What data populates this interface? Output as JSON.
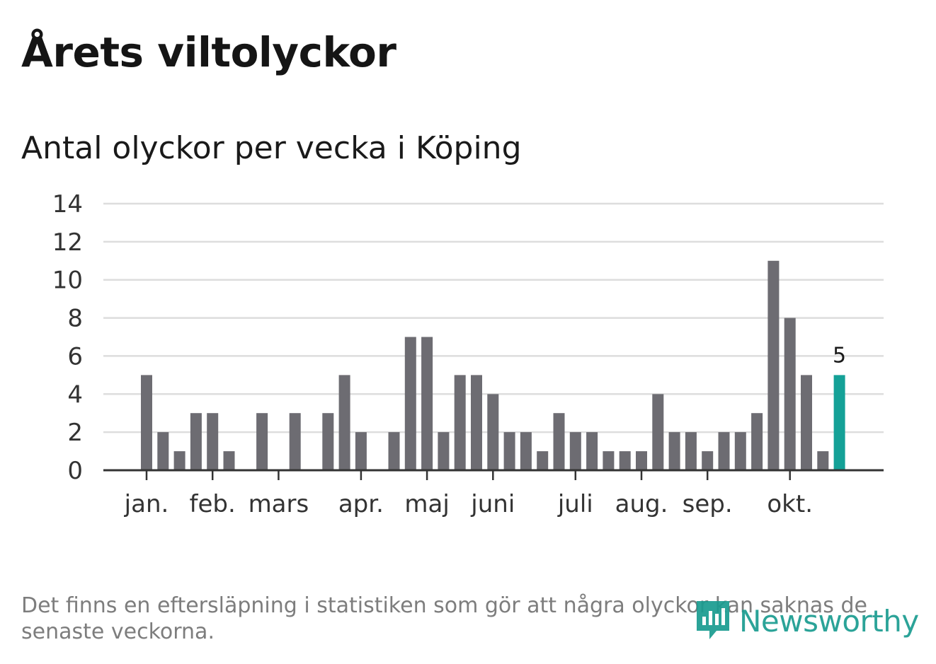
{
  "header": {
    "title": "Årets viltolyckor",
    "subtitle": "Antal olyckor per vecka i Köping"
  },
  "footnote": "Det finns en eftersläpning i statistiken som gör att några olyckor kan saknas de senaste veckorna.",
  "brand": {
    "name": "Newsworthy",
    "icon": "newsworthy-logo-icon",
    "color": "#1a9c90"
  },
  "chart_data": {
    "type": "bar",
    "title": "Antal olyckor per vecka i Köping",
    "xlabel": "",
    "ylabel": "",
    "ylim": [
      0,
      14
    ],
    "yticks": [
      0,
      2,
      4,
      6,
      8,
      10,
      12,
      14
    ],
    "grid": true,
    "weeks": [
      1,
      2,
      3,
      4,
      5,
      6,
      7,
      8,
      9,
      10,
      11,
      12,
      13,
      14,
      15,
      16,
      17,
      18,
      19,
      20,
      21,
      22,
      23,
      24,
      25,
      26,
      27,
      28,
      29,
      30,
      31,
      32,
      33,
      34,
      35,
      36,
      37,
      38,
      39,
      40,
      41,
      42,
      43
    ],
    "values": [
      5,
      2,
      1,
      3,
      3,
      1,
      0,
      3,
      0,
      3,
      0,
      3,
      5,
      2,
      0,
      2,
      7,
      7,
      2,
      5,
      5,
      4,
      2,
      2,
      1,
      3,
      2,
      2,
      1,
      1,
      1,
      4,
      2,
      2,
      1,
      2,
      2,
      3,
      11,
      8,
      5,
      1,
      5
    ],
    "month_ticks": [
      {
        "label": "jan.",
        "week": 1
      },
      {
        "label": "feb.",
        "week": 5
      },
      {
        "label": "mars",
        "week": 9
      },
      {
        "label": "apr.",
        "week": 14
      },
      {
        "label": "maj",
        "week": 18
      },
      {
        "label": "juni",
        "week": 22
      },
      {
        "label": "juli",
        "week": 27
      },
      {
        "label": "aug.",
        "week": 31
      },
      {
        "label": "sep.",
        "week": 35
      },
      {
        "label": "okt.",
        "week": 40
      }
    ],
    "highlight": {
      "week": 43,
      "value": 5,
      "label": "5"
    },
    "colors": {
      "bar": "#6d6c72",
      "highlight": "#14a197",
      "grid": "#dddddd",
      "axis": "#333333"
    }
  }
}
